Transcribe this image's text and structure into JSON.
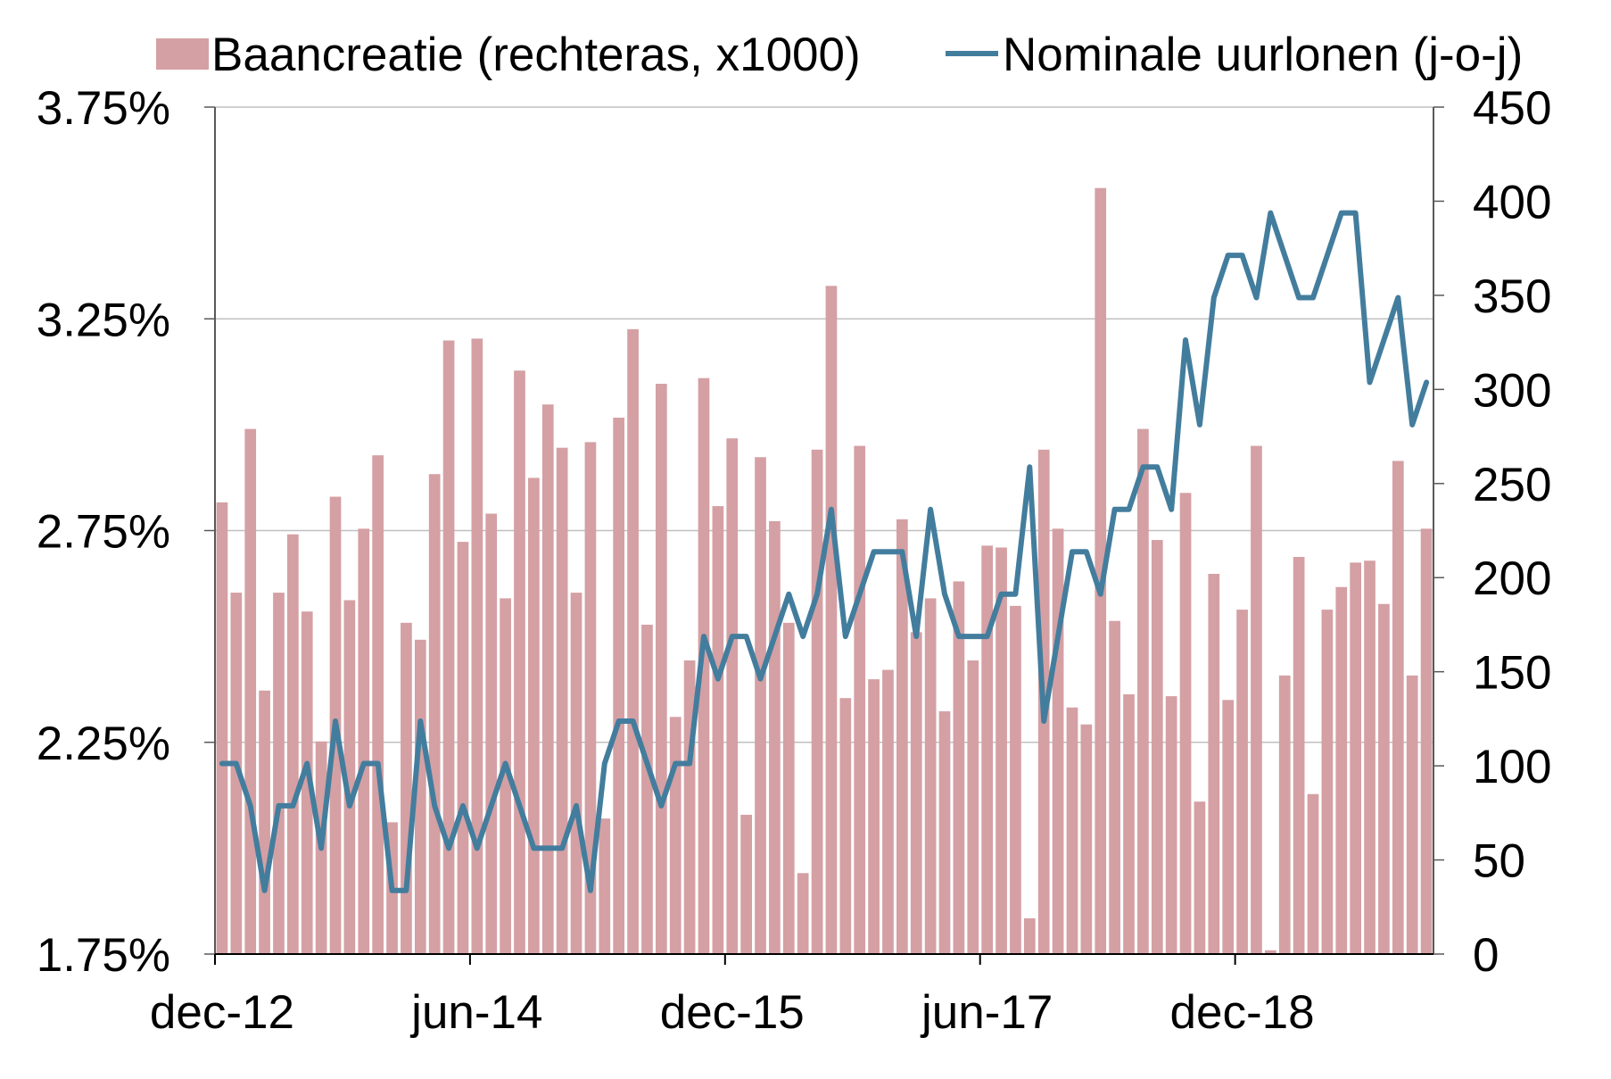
{
  "colors": {
    "bar": "#D4A0A4",
    "line": "#437D9D",
    "grid": "#C0C0C0",
    "axis": "#595959",
    "baseline": "#000000"
  },
  "chart_data": {
    "type": "bar",
    "legend": "top",
    "grid": true,
    "categories": [
      "dec-12",
      "jan-13",
      "feb-13",
      "mrt-13",
      "apr-13",
      "mei-13",
      "jun-13",
      "jul-13",
      "aug-13",
      "sep-13",
      "okt-13",
      "nov-13",
      "dec-13",
      "jan-14",
      "feb-14",
      "mrt-14",
      "apr-14",
      "mei-14",
      "jun-14",
      "jul-14",
      "aug-14",
      "sep-14",
      "okt-14",
      "nov-14",
      "dec-14",
      "jan-15",
      "feb-15",
      "mrt-15",
      "apr-15",
      "mei-15",
      "jun-15",
      "jul-15",
      "aug-15",
      "sep-15",
      "okt-15",
      "nov-15",
      "dec-15",
      "jan-16",
      "feb-16",
      "mrt-16",
      "apr-16",
      "mei-16",
      "jun-16",
      "jul-16",
      "aug-16",
      "sep-16",
      "okt-16",
      "nov-16",
      "dec-16",
      "jan-17",
      "feb-17",
      "mrt-17",
      "apr-17",
      "mei-17",
      "jun-17",
      "jul-17",
      "aug-17",
      "sep-17",
      "okt-17",
      "nov-17",
      "dec-17",
      "jan-18",
      "feb-18",
      "mrt-18",
      "apr-18",
      "mei-18",
      "jun-18",
      "jul-18",
      "aug-18",
      "sep-18",
      "okt-18",
      "nov-18",
      "dec-18",
      "jan-19",
      "feb-19",
      "mrt-19",
      "apr-19",
      "mei-19",
      "jun-19",
      "jul-19",
      "aug-19",
      "sep-19",
      "okt-19",
      "nov-19",
      "dec-19",
      "jan-20"
    ],
    "x_ticks": [
      "dec-12",
      "jun-14",
      "dec-15",
      "jun-17",
      "dec-18"
    ],
    "series": [
      {
        "name": "Baancreatie (rechteras, x1000)",
        "type": "bar",
        "axis": "right",
        "values": [
          240,
          192,
          279,
          140,
          192,
          223,
          182,
          113,
          243,
          188,
          226,
          265,
          70,
          176,
          167,
          255,
          326,
          219,
          327,
          234,
          189,
          310,
          253,
          292,
          269,
          192,
          272,
          72,
          285,
          332,
          175,
          303,
          126,
          156,
          306,
          238,
          274,
          74,
          264,
          230,
          176,
          43,
          268,
          355,
          136,
          270,
          146,
          151,
          231,
          171,
          189,
          129,
          198,
          156,
          217,
          216,
          185,
          19,
          268,
          226,
          131,
          122,
          407,
          177,
          138,
          279,
          220,
          137,
          245,
          81,
          202,
          135,
          183,
          270,
          2,
          148,
          211,
          85,
          183,
          195,
          208,
          209,
          186,
          262,
          148,
          226
        ]
      },
      {
        "name": "Nominale uurlonen (j-o-j)",
        "type": "line",
        "axis": "left",
        "unit": "%",
        "values": [
          2.2,
          2.2,
          2.1,
          1.9,
          2.1,
          2.1,
          2.2,
          2.0,
          2.3,
          2.1,
          2.2,
          2.2,
          1.9,
          1.9,
          2.3,
          2.1,
          2.0,
          2.1,
          2.0,
          2.1,
          2.2,
          2.1,
          2.0,
          2.0,
          2.0,
          2.1,
          1.9,
          2.2,
          2.3,
          2.3,
          2.2,
          2.1,
          2.2,
          2.2,
          2.5,
          2.4,
          2.5,
          2.5,
          2.4,
          2.5,
          2.6,
          2.5,
          2.6,
          2.8,
          2.5,
          2.6,
          2.7,
          2.7,
          2.7,
          2.5,
          2.8,
          2.6,
          2.5,
          2.5,
          2.5,
          2.6,
          2.6,
          2.9,
          2.3,
          2.5,
          2.7,
          2.7,
          2.6,
          2.8,
          2.8,
          2.9,
          2.9,
          2.8,
          3.2,
          3.0,
          3.3,
          3.4,
          3.4,
          3.3,
          3.5,
          3.4,
          3.3,
          3.3,
          3.4,
          3.5,
          3.5,
          3.1,
          3.2,
          3.3,
          3.0,
          3.1
        ]
      }
    ],
    "y_left": {
      "range": [
        1.75,
        3.75
      ],
      "ticks": [
        "1.75%",
        "2.25%",
        "2.75%",
        "3.25%",
        "3.75%"
      ]
    },
    "y_right": {
      "range": [
        0,
        450
      ],
      "ticks": [
        "0",
        "50",
        "100",
        "150",
        "200",
        "250",
        "300",
        "350",
        "400",
        "450"
      ]
    }
  }
}
